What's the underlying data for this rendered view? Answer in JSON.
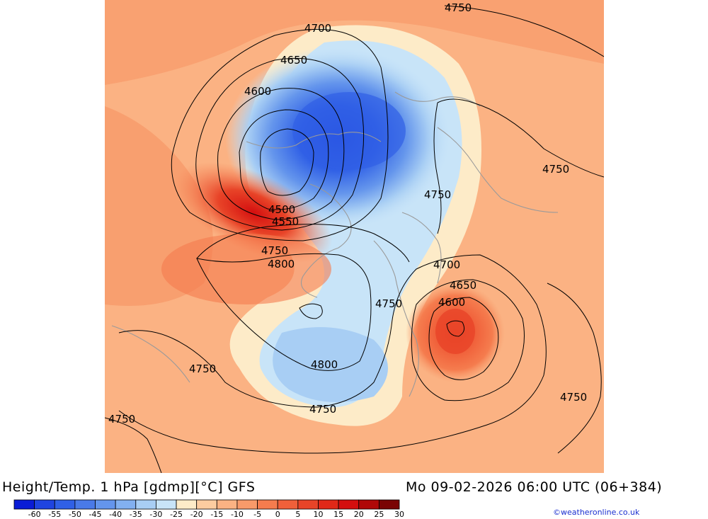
{
  "title": {
    "product": "Height/Temp. 1 hPa [gdmp][°C] GFS",
    "valid_time": "Mo 09-02-2026 06:00 UTC (06+384)"
  },
  "legend": {
    "ticks": [
      "-60",
      "-55",
      "-50",
      "-45",
      "-40",
      "-35",
      "-30",
      "-25",
      "-20",
      "-15",
      "-10",
      "-5",
      "0",
      "5",
      "10",
      "15",
      "20",
      "25",
      "30"
    ],
    "colors": [
      "#0a1cd6",
      "#1f44e0",
      "#3060e6",
      "#4a7ae8",
      "#6495ec",
      "#82b0f0",
      "#a8cef4",
      "#c8e4f8",
      "#fdebc8",
      "#fccca0",
      "#fbb283",
      "#f89a6a",
      "#f57c4e",
      "#f0603a",
      "#e84428",
      "#e02818",
      "#d40f0f",
      "#b00808",
      "#7a0404"
    ]
  },
  "contours": {
    "labels": [
      "4750",
      "4700",
      "4650",
      "4600",
      "4750",
      "4750",
      "4500",
      "4550",
      "4750",
      "4800",
      "4700",
      "4650",
      "4600",
      "4750",
      "4750",
      "4800",
      "4750",
      "4750",
      "4750"
    ]
  },
  "copyright": "©weatheronline.co.uk"
}
